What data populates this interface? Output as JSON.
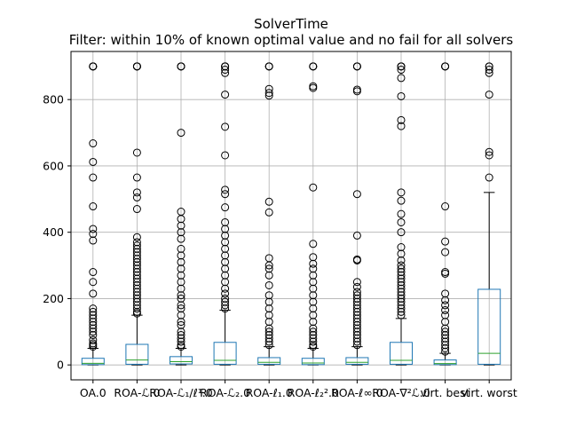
{
  "chart_data": {
    "type": "boxplot",
    "title": "SolverTime",
    "subtitle": "Filter: within 10% of known optimal value and no fail for all solvers",
    "xlabel": "",
    "ylabel": "",
    "ylim": [
      -45,
      945
    ],
    "yticks": [
      0,
      200,
      400,
      600,
      800
    ],
    "grid": true,
    "categories": [
      "OA.0",
      "ROA-ℒ.0",
      "ROA-ℒ₁/ℓ¹.0",
      "ROA-ℒ₂.0",
      "ROA-ℓ₁.0",
      "ROA-ℓ₂².0",
      "ROA-ℓ∞.0",
      "ROA-∇²ℒ.0",
      "virt. best",
      "virt. worst"
    ],
    "boxes": [
      {
        "whislo": 0,
        "q1": 1,
        "med": 5,
        "q3": 20,
        "whishi": 50,
        "fliers": [
          55,
          60,
          65,
          75,
          90,
          100,
          110,
          120,
          130,
          140,
          150,
          160,
          170,
          215,
          250,
          280,
          375,
          395,
          410,
          478,
          565,
          612,
          668,
          900,
          900,
          900,
          900
        ]
      },
      {
        "whislo": 0,
        "q1": 2,
        "med": 15,
        "q3": 62,
        "whishi": 150,
        "fliers": [
          155,
          160,
          170,
          180,
          190,
          200,
          210,
          220,
          230,
          240,
          250,
          260,
          270,
          280,
          290,
          300,
          310,
          320,
          330,
          340,
          350,
          360,
          370,
          385,
          470,
          505,
          520,
          565,
          640,
          900,
          900,
          900,
          900
        ]
      },
      {
        "whislo": 0,
        "q1": 3,
        "med": 10,
        "q3": 25,
        "whishi": 50,
        "fliers": [
          55,
          60,
          70,
          80,
          90,
          100,
          120,
          130,
          150,
          170,
          180,
          200,
          210,
          230,
          250,
          270,
          290,
          310,
          330,
          350,
          380,
          400,
          420,
          440,
          462,
          700,
          900,
          900,
          900
        ]
      },
      {
        "whislo": 0,
        "q1": 2,
        "med": 14,
        "q3": 68,
        "whishi": 165,
        "fliers": [
          170,
          180,
          190,
          200,
          215,
          230,
          250,
          270,
          290,
          310,
          330,
          350,
          370,
          390,
          410,
          430,
          475,
          515,
          528,
          632,
          718,
          815,
          880,
          890,
          900,
          900,
          900
        ]
      },
      {
        "whislo": 0,
        "q1": 2,
        "med": 8,
        "q3": 22,
        "whishi": 55,
        "fliers": [
          60,
          70,
          80,
          90,
          100,
          110,
          130,
          150,
          170,
          190,
          210,
          240,
          270,
          290,
          300,
          322,
          460,
          492,
          812,
          820,
          832,
          900,
          900,
          900
        ]
      },
      {
        "whislo": 0,
        "q1": 1,
        "med": 6,
        "q3": 20,
        "whishi": 50,
        "fliers": [
          55,
          60,
          70,
          80,
          90,
          100,
          110,
          130,
          150,
          170,
          190,
          210,
          230,
          250,
          270,
          290,
          305,
          325,
          365,
          535,
          835,
          840,
          900,
          900,
          900
        ]
      },
      {
        "whislo": 0,
        "q1": 2,
        "med": 8,
        "q3": 22,
        "whishi": 55,
        "fliers": [
          60,
          70,
          80,
          90,
          100,
          110,
          120,
          130,
          140,
          150,
          160,
          170,
          180,
          190,
          200,
          210,
          220,
          235,
          250,
          315,
          318,
          390,
          515,
          825,
          830,
          900,
          900,
          900
        ]
      },
      {
        "whislo": 0,
        "q1": 2,
        "med": 14,
        "q3": 68,
        "whishi": 140,
        "fliers": [
          150,
          160,
          170,
          180,
          190,
          200,
          210,
          220,
          230,
          240,
          250,
          260,
          270,
          280,
          290,
          300,
          315,
          335,
          355,
          400,
          430,
          455,
          495,
          520,
          720,
          738,
          810,
          865,
          890,
          900,
          900,
          900
        ]
      },
      {
        "whislo": 0,
        "q1": 1,
        "med": 4,
        "q3": 15,
        "whishi": 35,
        "fliers": [
          40,
          50,
          60,
          70,
          80,
          90,
          100,
          110,
          130,
          150,
          165,
          180,
          195,
          215,
          275,
          280,
          340,
          372,
          478,
          900,
          900,
          900
        ]
      },
      {
        "whislo": 0,
        "q1": 2,
        "med": 35,
        "q3": 228,
        "whishi": 520,
        "fliers": [
          565,
          632,
          642,
          815,
          880,
          890,
          900,
          900
        ]
      }
    ]
  }
}
